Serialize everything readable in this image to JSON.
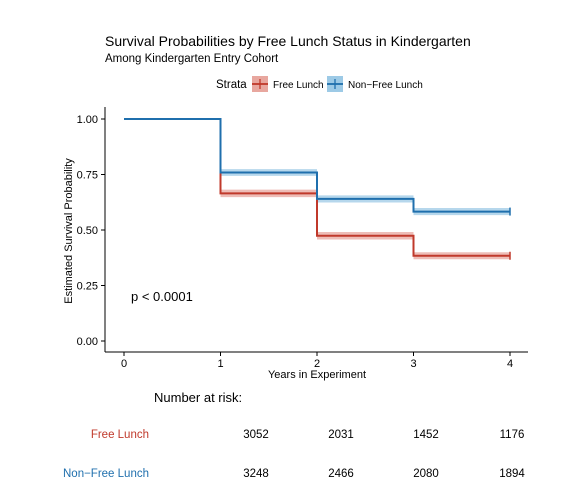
{
  "chart_data": {
    "type": "line",
    "step": true,
    "title": "Survival Probabilities by Free Lunch Status in Kindergarten",
    "subtitle": "Among Kindergarten Entry Cohort",
    "xlabel": "Years in Experiment",
    "ylabel": "Estimated Survival Probability",
    "xlim": [
      0,
      4
    ],
    "ylim": [
      0,
      1
    ],
    "x_ticks": [
      0,
      1,
      2,
      3,
      4
    ],
    "x_tick_labels": [
      "0",
      "1",
      "2",
      "3",
      "4"
    ],
    "y_ticks": [
      0,
      0.25,
      0.5,
      0.75,
      1
    ],
    "y_tick_labels": [
      "0.00",
      "0.25",
      "0.50",
      "0.75",
      "1.00"
    ],
    "grid": false,
    "legend": {
      "title": "Strata",
      "position": "top",
      "entries": [
        "Free Lunch",
        "Non−Free Lunch"
      ]
    },
    "annotation": "p < 0.0001",
    "series": [
      {
        "name": "Free Lunch",
        "color": "#C0392B",
        "band_color": "#E8A79F",
        "x": [
          0,
          1,
          2,
          3,
          4
        ],
        "y": [
          1.0,
          0.665,
          0.474,
          0.384,
          0.384
        ],
        "ci_low": [
          1.0,
          0.648,
          0.457,
          0.368,
          0.368
        ],
        "ci_high": [
          1.0,
          0.682,
          0.491,
          0.4,
          0.4
        ]
      },
      {
        "name": "Non−Free Lunch",
        "color": "#1F6FAD",
        "band_color": "#9DCAE6",
        "x": [
          0,
          1,
          2,
          3,
          4
        ],
        "y": [
          1.0,
          0.759,
          0.64,
          0.583,
          0.583
        ],
        "ci_low": [
          1.0,
          0.744,
          0.624,
          0.567,
          0.567
        ],
        "ci_high": [
          1.0,
          0.774,
          0.656,
          0.599,
          0.599
        ]
      }
    ],
    "risk_table": {
      "title": "Number at risk:",
      "rows": [
        {
          "label": "Free Lunch",
          "color": "#C0392B",
          "values": [
            "3052",
            "2031",
            "1452",
            "1176"
          ]
        },
        {
          "label": "Non−Free Lunch",
          "color": "#1F6FAD",
          "values": [
            "3248",
            "2466",
            "2080",
            "1894"
          ]
        }
      ]
    }
  }
}
